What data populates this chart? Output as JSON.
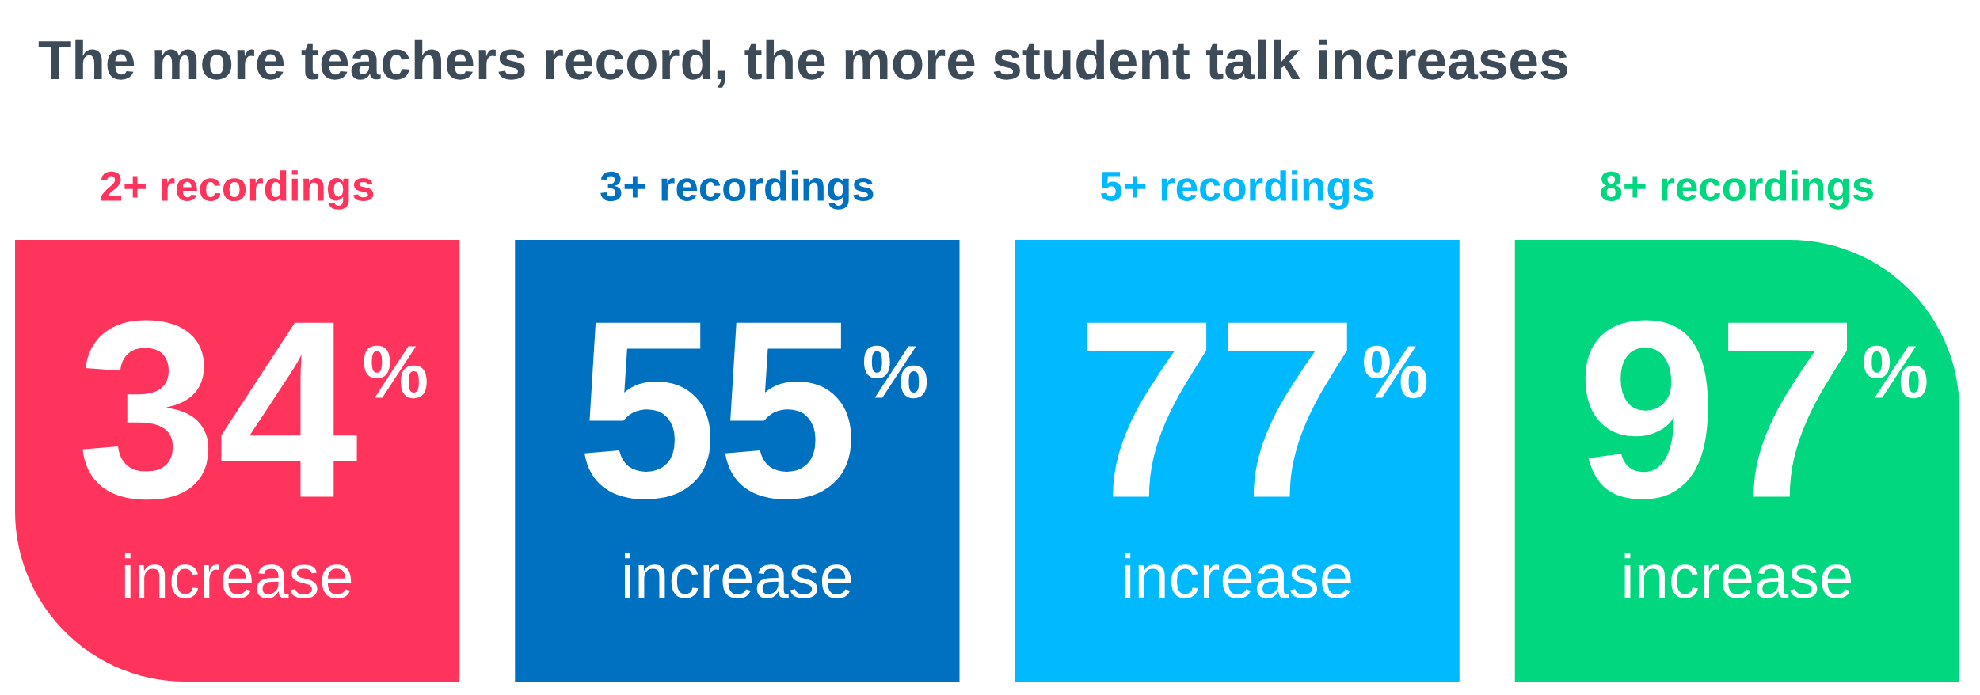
{
  "chart_data": {
    "type": "other",
    "title": "The more teachers record, the more student talk increases",
    "categories": [
      "2+ recordings",
      "3+ recordings",
      "5+ recordings",
      "8+ recordings"
    ],
    "values": [
      34,
      55,
      77,
      97
    ],
    "value_labels": [
      "34%",
      "55%",
      "77%",
      "97%"
    ],
    "colors": [
      "#ff345c",
      "#0070c0",
      "#00b9ff",
      "#00d77e"
    ],
    "annotations": [
      "increase",
      "increase",
      "increase",
      "increase"
    ]
  }
}
